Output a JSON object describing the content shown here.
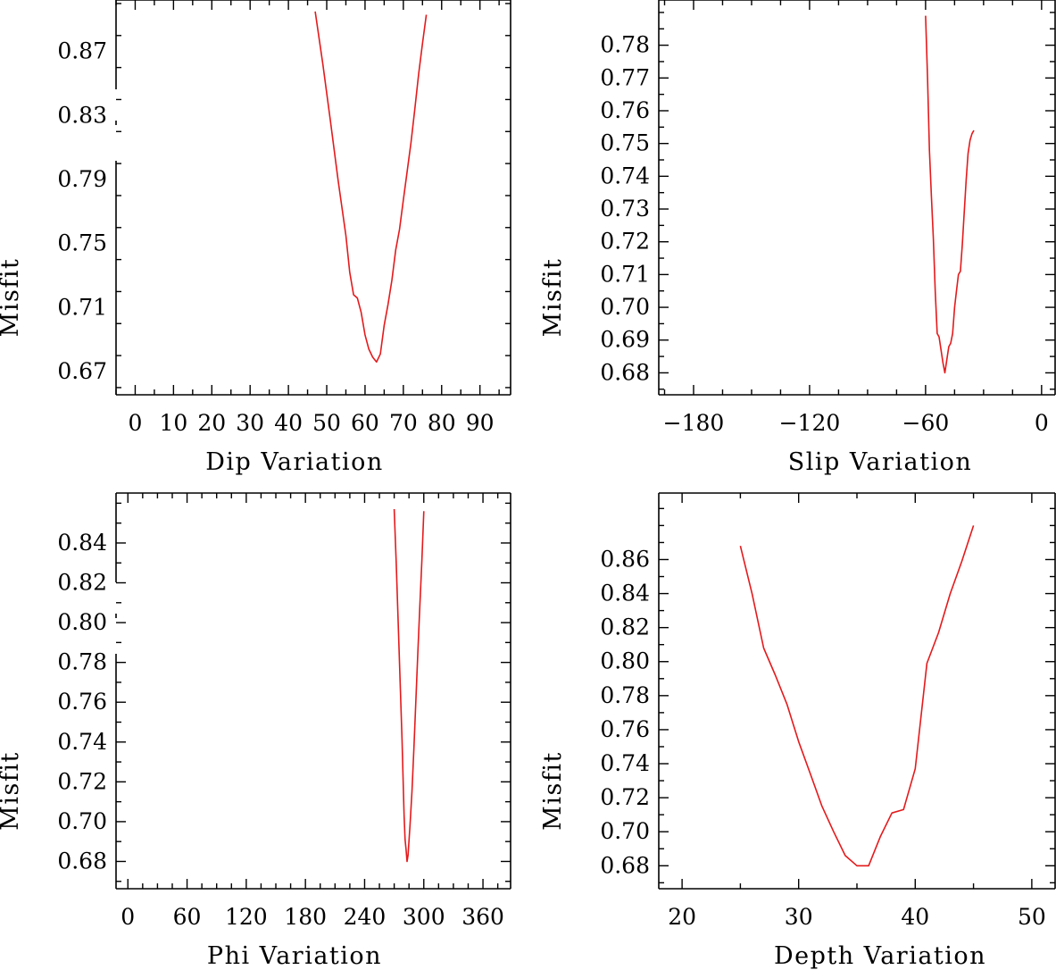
{
  "colors": {
    "series": "#e41a1c",
    "axes": "#000000",
    "background": "#ffffff"
  },
  "chart_data": [
    {
      "type": "line",
      "xlabel": "Dip    Variation",
      "ylabel": "Misfit",
      "xlim": [
        -5,
        98
      ],
      "ylim": [
        0.6555,
        0.9022
      ],
      "xticks": [
        0,
        10,
        20,
        30,
        40,
        50,
        60,
        70,
        80,
        90
      ],
      "xtick_labels": [
        "0",
        "10",
        "20",
        "30",
        "40",
        "50",
        "60",
        "70",
        "80",
        "90"
      ],
      "yticks": [
        0.67,
        0.71,
        0.75,
        0.79,
        0.83,
        0.87
      ],
      "ytick_labels": [
        "0.67",
        "0.71",
        "0.75",
        "0.79",
        "0.83",
        "0.87"
      ],
      "grid": false,
      "series": [
        {
          "x": [
            47,
            49,
            51,
            53,
            55,
            56,
            57,
            58,
            59,
            60,
            61,
            62,
            63,
            64,
            65,
            66,
            67,
            68,
            69,
            70,
            71,
            72,
            73,
            74,
            75,
            76
          ],
          "y": [
            0.895,
            0.862,
            0.826,
            0.789,
            0.755,
            0.732,
            0.718,
            0.716,
            0.707,
            0.693,
            0.684,
            0.679,
            0.676,
            0.681,
            0.699,
            0.712,
            0.727,
            0.746,
            0.759,
            0.777,
            0.795,
            0.813,
            0.834,
            0.856,
            0.875,
            0.893
          ]
        }
      ]
    },
    {
      "type": "line",
      "xlabel": "Slip    Variation",
      "ylabel": "Misfit",
      "xlim": [
        -198,
        7
      ],
      "ylim": [
        0.6733,
        0.7938
      ],
      "xticks": [
        -180,
        -120,
        -60,
        0
      ],
      "xtick_labels": [
        "−180",
        "−120",
        "−60",
        "0"
      ],
      "yticks": [
        0.68,
        0.69,
        0.7,
        0.71,
        0.72,
        0.73,
        0.74,
        0.75,
        0.76,
        0.77,
        0.78
      ],
      "ytick_labels": [
        "0.68",
        "0.69",
        "0.70",
        "0.71",
        "0.72",
        "0.73",
        "0.74",
        "0.75",
        "0.76",
        "0.77",
        "0.78"
      ],
      "grid": false,
      "series": [
        {
          "x": [
            -60,
            -59,
            -58,
            -57,
            -56,
            -55,
            -54,
            -53,
            -52,
            -51,
            -50,
            -49,
            -48,
            -47,
            -46,
            -45,
            -44,
            -43,
            -42,
            -41,
            -40,
            -39,
            -38,
            -37,
            -36,
            -35
          ],
          "y": [
            0.789,
            0.77,
            0.748,
            0.734,
            0.721,
            0.705,
            0.692,
            0.691,
            0.687,
            0.683,
            0.68,
            0.684,
            0.688,
            0.689,
            0.692,
            0.7,
            0.705,
            0.71,
            0.711,
            0.719,
            0.729,
            0.739,
            0.747,
            0.751,
            0.753,
            0.754
          ]
        }
      ]
    },
    {
      "type": "line",
      "xlabel": "Phi    Variation",
      "ylabel": "Misfit",
      "xlim": [
        -12,
        388
      ],
      "ylim": [
        0.6663,
        0.8651
      ],
      "xticks": [
        0,
        60,
        120,
        180,
        240,
        300,
        360
      ],
      "xtick_labels": [
        "0",
        "60",
        "120",
        "180",
        "240",
        "300",
        "360"
      ],
      "yticks": [
        0.68,
        0.7,
        0.72,
        0.74,
        0.76,
        0.78,
        0.8,
        0.82,
        0.84
      ],
      "ytick_labels": [
        "0.68",
        "0.70",
        "0.72",
        "0.74",
        "0.76",
        "0.78",
        "0.80",
        "0.82",
        "0.84"
      ],
      "grid": false,
      "series": [
        {
          "x": [
            270,
            272,
            274,
            276,
            278,
            279,
            280,
            281,
            282,
            283,
            284,
            286,
            288,
            290,
            292,
            294,
            296,
            298,
            300
          ],
          "y": [
            0.857,
            0.831,
            0.801,
            0.771,
            0.741,
            0.721,
            0.703,
            0.691,
            0.686,
            0.68,
            0.683,
            0.698,
            0.715,
            0.737,
            0.761,
            0.785,
            0.808,
            0.831,
            0.856
          ]
        }
      ]
    },
    {
      "type": "line",
      "xlabel": "Depth  Variation",
      "ylabel": "Misfit",
      "xlim": [
        18,
        52
      ],
      "ylim": [
        0.6665,
        0.8991
      ],
      "xticks": [
        20,
        30,
        40,
        50
      ],
      "xtick_labels": [
        "20",
        "30",
        "40",
        "50"
      ],
      "yticks": [
        0.68,
        0.7,
        0.72,
        0.74,
        0.76,
        0.78,
        0.8,
        0.82,
        0.84,
        0.86
      ],
      "ytick_labels": [
        "0.68",
        "0.70",
        "0.72",
        "0.74",
        "0.76",
        "0.78",
        "0.80",
        "0.82",
        "0.84",
        "0.86"
      ],
      "grid": false,
      "series": [
        {
          "x": [
            25,
            26,
            27,
            28,
            29,
            30,
            31,
            32,
            33,
            34,
            35,
            36,
            37,
            38,
            39,
            40,
            41,
            42,
            43,
            44,
            45
          ],
          "y": [
            0.868,
            0.84,
            0.808,
            0.792,
            0.775,
            0.753,
            0.734,
            0.715,
            0.7,
            0.686,
            0.68,
            0.68,
            0.697,
            0.711,
            0.713,
            0.737,
            0.799,
            0.817,
            0.84,
            0.859,
            0.88
          ]
        }
      ]
    }
  ]
}
